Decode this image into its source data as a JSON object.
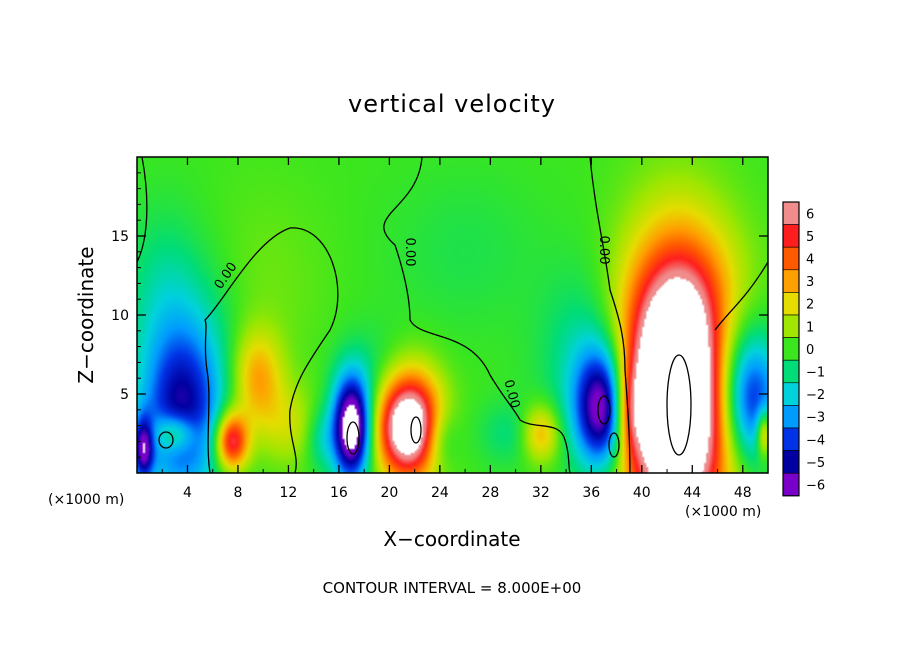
{
  "chart_data": {
    "type": "heatmap",
    "title": "vertical velocity",
    "xlabel": "X−coordinate",
    "ylabel": "Z−coordinate",
    "x_unit": "(×1000 m)",
    "x_unit_right": "(×1000 m)",
    "footer": "CONTOUR INTERVAL = 8.000E+00",
    "xlim": [
      0,
      50
    ],
    "ylim": [
      0,
      20
    ],
    "x_ticks": [
      4,
      8,
      12,
      16,
      20,
      24,
      28,
      32,
      36,
      40,
      44,
      48
    ],
    "x_tick_labels": [
      "4",
      "8",
      "12",
      "16",
      "20",
      "24",
      "28",
      "32",
      "36",
      "40",
      "44",
      "48"
    ],
    "y_ticks": [
      5,
      10,
      15
    ],
    "y_tick_labels": [
      "5",
      "10",
      "15"
    ],
    "colorbar": {
      "levels": [
        6,
        5,
        4,
        3,
        2,
        1,
        0,
        -1,
        -2,
        -3,
        -4,
        -5,
        -6
      ],
      "labels": [
        "6",
        "5",
        "4",
        "3",
        "2",
        "1",
        "0",
        "−1",
        "−2",
        "−3",
        "−4",
        "−5",
        "−6"
      ],
      "colors": [
        "#f08c8c",
        "#ff1e1e",
        "#ff5a00",
        "#ffa000",
        "#e6dc00",
        "#a0e600",
        "#3ce61e",
        "#00dc78",
        "#00d2dc",
        "#009bff",
        "#0032e6",
        "#0000a0",
        "#7800c8"
      ]
    },
    "contour_labels": [
      "0.00",
      "0.00",
      "0.00",
      "0.00"
    ],
    "background_value": 0,
    "features": [
      {
        "x": 42.7,
        "z": 5.0,
        "rx": 4.2,
        "rz": 8.5,
        "value": 12
      },
      {
        "x": 44.5,
        "z": 10.5,
        "rx": 4.5,
        "rz": 5.0,
        "value": 1.2
      },
      {
        "x": 37.0,
        "z": 4.0,
        "rx": 2.2,
        "rz": 3.8,
        "value": -7
      },
      {
        "x": 35.5,
        "z": 7.0,
        "rx": 3.5,
        "rz": 5.5,
        "value": -1.5
      },
      {
        "x": 39.0,
        "z": 4.0,
        "rx": 1.2,
        "rz": 3.0,
        "value": 3
      },
      {
        "x": 48.5,
        "z": 4.5,
        "rx": 2.5,
        "rz": 4.0,
        "value": -5
      },
      {
        "x": 49.7,
        "z": 2.5,
        "rx": 0.6,
        "rz": 1.5,
        "value": 4
      },
      {
        "x": 47.0,
        "z": 8.0,
        "rx": 3.0,
        "rz": 4.0,
        "value": -1.5
      },
      {
        "x": 21.5,
        "z": 3.0,
        "rx": 2.5,
        "rz": 3.3,
        "value": 9
      },
      {
        "x": 24.0,
        "z": 2.2,
        "rx": 1.4,
        "rz": 2.0,
        "value": -1.8
      },
      {
        "x": 17.0,
        "z": 2.8,
        "rx": 1.5,
        "rz": 3.2,
        "value": -8
      },
      {
        "x": 18.8,
        "z": 6.0,
        "rx": 2.8,
        "rz": 3.0,
        "value": -1.0
      },
      {
        "x": 14.5,
        "z": 2.2,
        "rx": 1.2,
        "rz": 2.0,
        "value": -1.5
      },
      {
        "x": 3.5,
        "z": 3.5,
        "rx": 3.2,
        "rz": 5.0,
        "value": -4.2
      },
      {
        "x": 3.0,
        "z": 2.5,
        "rx": 1.6,
        "rz": 1.2,
        "value": 3
      },
      {
        "x": 0.5,
        "z": 1.5,
        "rx": 0.8,
        "rz": 2.0,
        "value": -5
      },
      {
        "x": 4.0,
        "z": 7.5,
        "rx": 4.0,
        "rz": 6.0,
        "value": -1.6
      },
      {
        "x": 2.0,
        "z": 12.0,
        "rx": 3.0,
        "rz": 5.0,
        "value": -0.8
      },
      {
        "x": 7.5,
        "z": 2.0,
        "rx": 1.3,
        "rz": 1.8,
        "value": 6
      },
      {
        "x": 9.5,
        "z": 6.0,
        "rx": 2.0,
        "rz": 3.0,
        "value": 3
      },
      {
        "x": 12.0,
        "z": 3.0,
        "rx": 2.5,
        "rz": 2.5,
        "value": 1.5
      },
      {
        "x": 32.0,
        "z": 2.5,
        "rx": 1.5,
        "rz": 1.8,
        "value": 3
      },
      {
        "x": 29.5,
        "z": 2.5,
        "rx": 2.5,
        "rz": 2.0,
        "value": -1.0
      },
      {
        "x": 26.0,
        "z": 14.0,
        "rx": 6.0,
        "rz": 5.0,
        "value": -0.5
      },
      {
        "x": 10.0,
        "z": 12.0,
        "rx": 5.0,
        "rz": 6.0,
        "value": 0.5
      }
    ]
  }
}
